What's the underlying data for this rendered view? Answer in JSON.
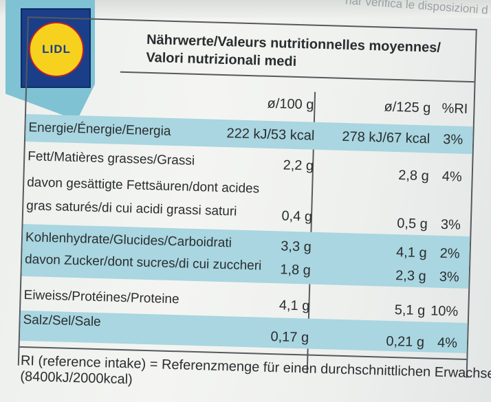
{
  "top_text": "nar verifica le disposizioni d",
  "logo": {
    "text": "LIDL"
  },
  "header": {
    "line1": "Nährwerte/Valeurs nutritionnelles moyennes/",
    "line2": "Valori nutrizionali medi"
  },
  "columns": {
    "per100": "ø/100 g",
    "per125": "ø/125 g",
    "ri": "%RI"
  },
  "rows": [
    {
      "label": "Energie/Énergie/Energia",
      "per100": "222 kJ/53 kcal",
      "per125": "278 kJ/67 kcal",
      "ri": "3%"
    },
    {
      "label": "Fett/Matières grasses/Grassi",
      "per100": "2,2 g",
      "per125": "2,8 g",
      "ri": "4%"
    },
    {
      "label": "davon gesättigte Fettsäuren/dont acides",
      "per100": "",
      "per125": "",
      "ri": ""
    },
    {
      "label": "gras saturés/di cui acidi grassi saturi",
      "per100": "0,4 g",
      "per125": "0,5 g",
      "ri": "3%"
    },
    {
      "label": "Kohlenhydrate/Glucides/Carboidrati",
      "per100": "3,3 g",
      "per125": "4,1 g",
      "ri": "2%"
    },
    {
      "label": "davon Zucker/dont sucres/di cui zuccheri",
      "per100": "1,8 g",
      "per125": "2,3 g",
      "ri": "3%"
    },
    {
      "label": "Eiweiss/Protéines/Proteine",
      "per100": "4,1 g",
      "per125": "5,1 g",
      "ri": "10%"
    },
    {
      "label": "Salz/Sel/Sale",
      "per100": "0,17 g",
      "per125": "0,21 g",
      "ri": "4%"
    }
  ],
  "footer": {
    "line1": "RI (reference intake) = Referenzmenge für einen durchschnittlichen Erwachsenen",
    "line2": "(8400kJ/2000kcal)"
  },
  "colors": {
    "band": "#a9d6e0",
    "ribbon": "#7fc2d3",
    "logo_blue": "#1a3f88",
    "logo_yellow": "#f6d21f",
    "logo_red": "#c62026"
  }
}
